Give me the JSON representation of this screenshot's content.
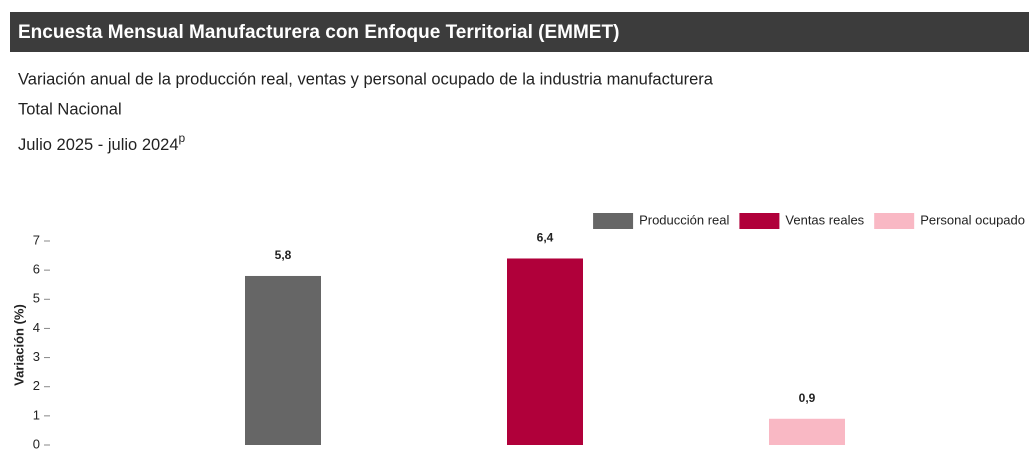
{
  "chart_data": {
    "type": "bar",
    "title": "Encuesta Mensual Manufacturera con Enfoque Territorial (EMMET)",
    "subtitle": [
      "Variación anual de la producción real, ventas y personal ocupado de la industria manufacturera",
      "Total Nacional",
      "Julio 2025 - julio 2024"
    ],
    "subtitle_note": "p",
    "y_label": "Variación (%)",
    "ylim": [
      0,
      7
    ],
    "yticks": [
      0,
      1,
      2,
      3,
      4,
      5,
      6,
      7
    ],
    "grid": false,
    "legend": "top-right",
    "series": [
      {
        "name": "Producción real",
        "color": "#666666",
        "values": [
          5.8
        ],
        "value_labels": [
          "5,8"
        ]
      },
      {
        "name": "Ventas reales",
        "color": "#b0003a",
        "values": [
          6.4
        ],
        "value_labels": [
          "6,4"
        ]
      },
      {
        "name": "Personal ocupado",
        "color": "#f9b8c4",
        "values": [
          0.9
        ],
        "value_labels": [
          "0,9"
        ]
      }
    ]
  }
}
